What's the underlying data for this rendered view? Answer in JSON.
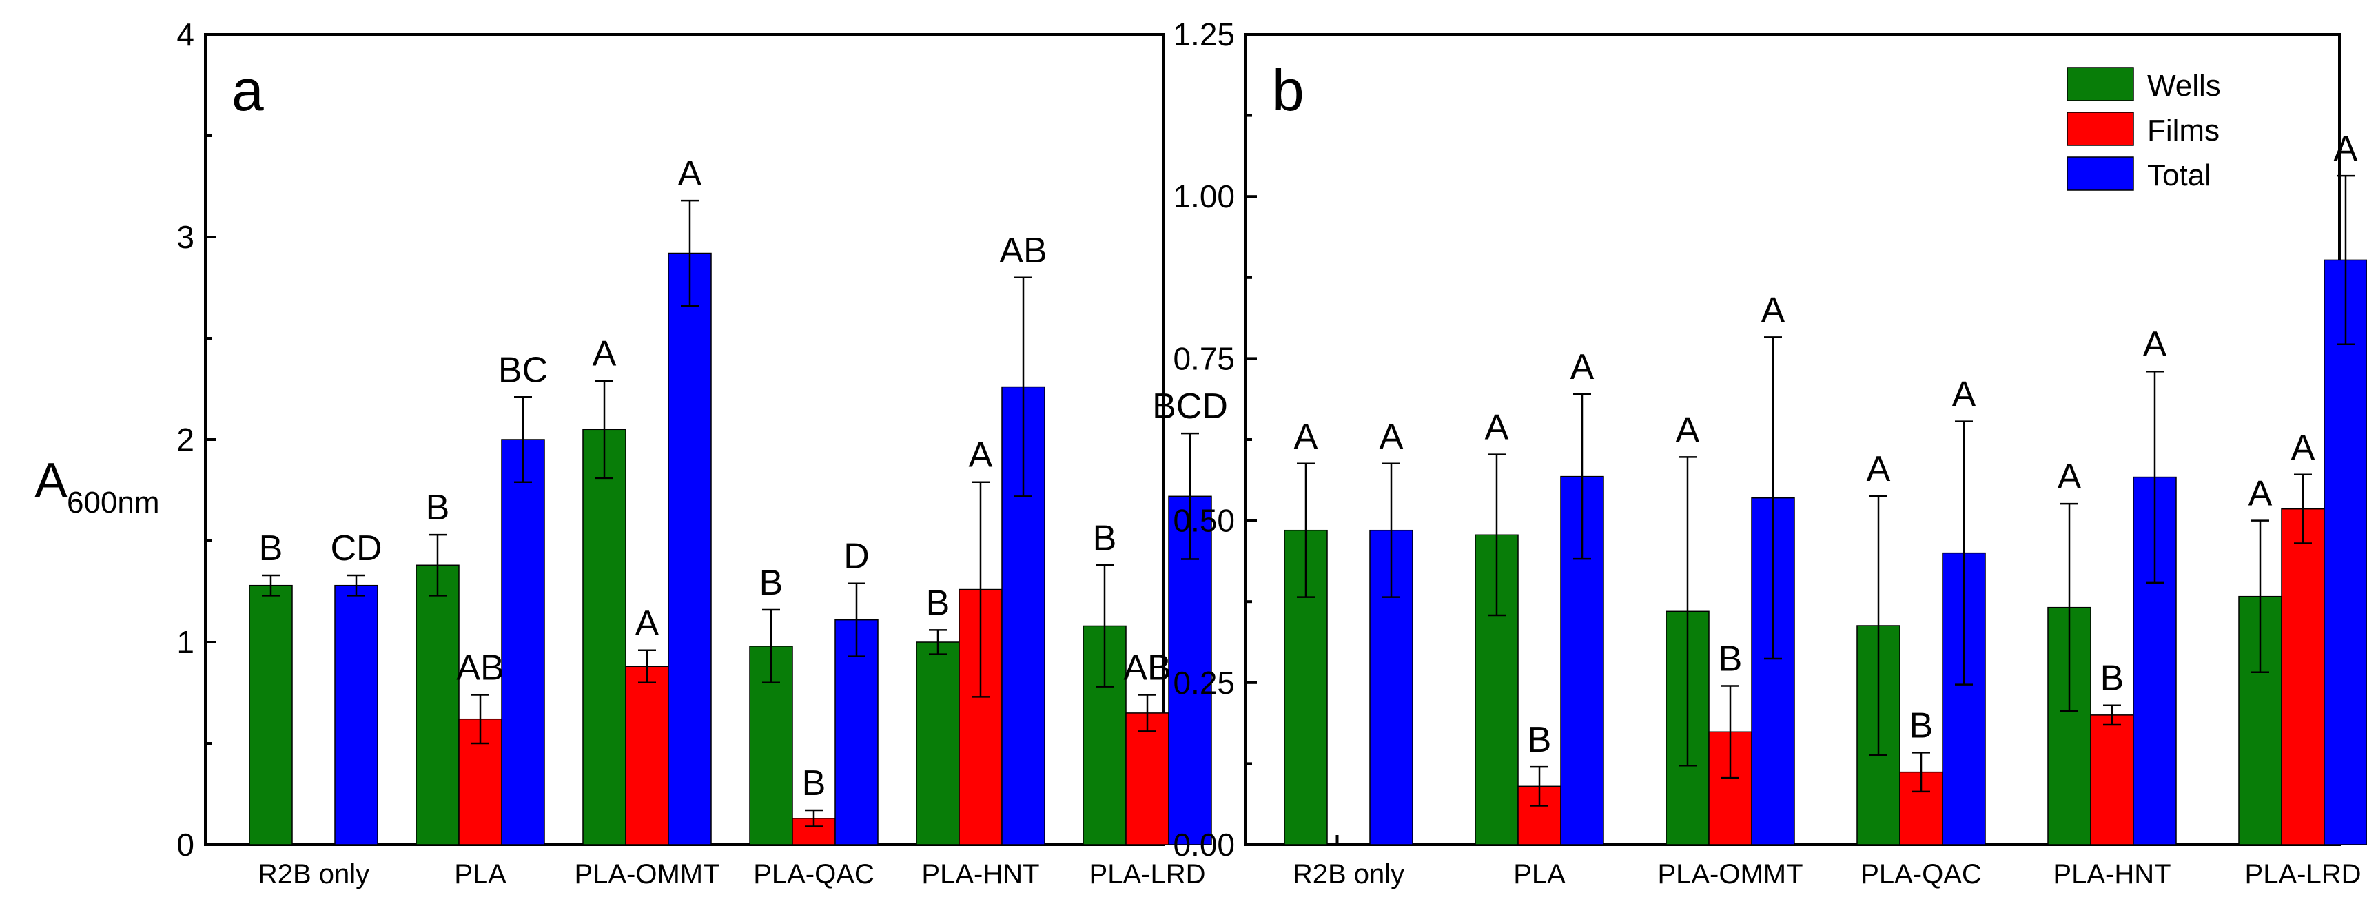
{
  "figure": {
    "y_axis_title_main": "A",
    "y_axis_title_sub": "600nm"
  },
  "colors": {
    "wells": "#087d08",
    "films": "#ff0000",
    "total": "#0000ff"
  },
  "chart_data": [
    {
      "type": "bar",
      "panel_label": "a",
      "categories": [
        "R2B  only",
        "PLA",
        "PLA-OMMT",
        "PLA-QAC",
        "PLA-HNT",
        "PLA-LRD"
      ],
      "ylim": [
        0,
        4
      ],
      "yticks": [
        0,
        1,
        2,
        3,
        4
      ],
      "ytick_labels": [
        "0",
        "1",
        "2",
        "3",
        "4"
      ],
      "xlabel": "",
      "ylabel": "A600nm",
      "legend": false,
      "series": [
        {
          "name": "Wells",
          "color_key": "wells",
          "values": [
            1.28,
            1.38,
            2.05,
            0.98,
            1.0,
            1.08
          ],
          "errors": [
            0.05,
            0.15,
            0.24,
            0.18,
            0.06,
            0.3
          ],
          "labels": [
            "B",
            "B",
            "A",
            "B",
            "B",
            "B"
          ]
        },
        {
          "name": "Films",
          "color_key": "films",
          "values": [
            null,
            0.62,
            0.88,
            0.13,
            1.26,
            0.65
          ],
          "errors": [
            null,
            0.12,
            0.08,
            0.04,
            0.53,
            0.09
          ],
          "labels": [
            null,
            "AB",
            "A",
            "B",
            "A",
            "AB"
          ]
        },
        {
          "name": "Total",
          "color_key": "total",
          "values": [
            1.28,
            2.0,
            2.92,
            1.11,
            2.26,
            1.72
          ],
          "errors": [
            0.05,
            0.21,
            0.26,
            0.18,
            0.54,
            0.31
          ],
          "labels": [
            "CD",
            "BC",
            "A",
            "D",
            "AB",
            "BCD"
          ]
        }
      ]
    },
    {
      "type": "bar",
      "panel_label": "b",
      "categories": [
        "R2B  only",
        "PLA",
        "PLA-OMMT",
        "PLA-QAC",
        "PLA-HNT",
        "PLA-LRD"
      ],
      "ylim": [
        0,
        1.25
      ],
      "yticks": [
        0,
        0.25,
        0.5,
        0.75,
        1.0,
        1.25
      ],
      "ytick_labels": [
        "0.00",
        "0.25",
        "0.50",
        "0.75",
        "1.00",
        "1.25"
      ],
      "xlabel": "",
      "ylabel": "",
      "legend": true,
      "legend_position": "top-right",
      "series": [
        {
          "name": "Wells",
          "color_key": "wells",
          "values": [
            0.485,
            0.478,
            0.36,
            0.338,
            0.366,
            0.383
          ],
          "errors": [
            0.103,
            0.124,
            0.238,
            0.2,
            0.16,
            0.117
          ],
          "labels": [
            "A",
            "A",
            "A",
            "A",
            "A",
            "A"
          ]
        },
        {
          "name": "Films",
          "color_key": "films",
          "values": [
            null,
            0.09,
            0.174,
            0.112,
            0.2,
            0.518
          ],
          "errors": [
            null,
            0.03,
            0.071,
            0.03,
            0.015,
            0.053
          ],
          "labels": [
            null,
            "B",
            "B",
            "B",
            "B",
            "A"
          ]
        },
        {
          "name": "Total",
          "color_key": "total",
          "values": [
            0.485,
            0.568,
            0.535,
            0.45,
            0.567,
            0.902
          ],
          "errors": [
            0.103,
            0.127,
            0.248,
            0.203,
            0.163,
            0.13
          ],
          "labels": [
            "A",
            "A",
            "A",
            "A",
            "A",
            "A"
          ]
        }
      ]
    }
  ]
}
